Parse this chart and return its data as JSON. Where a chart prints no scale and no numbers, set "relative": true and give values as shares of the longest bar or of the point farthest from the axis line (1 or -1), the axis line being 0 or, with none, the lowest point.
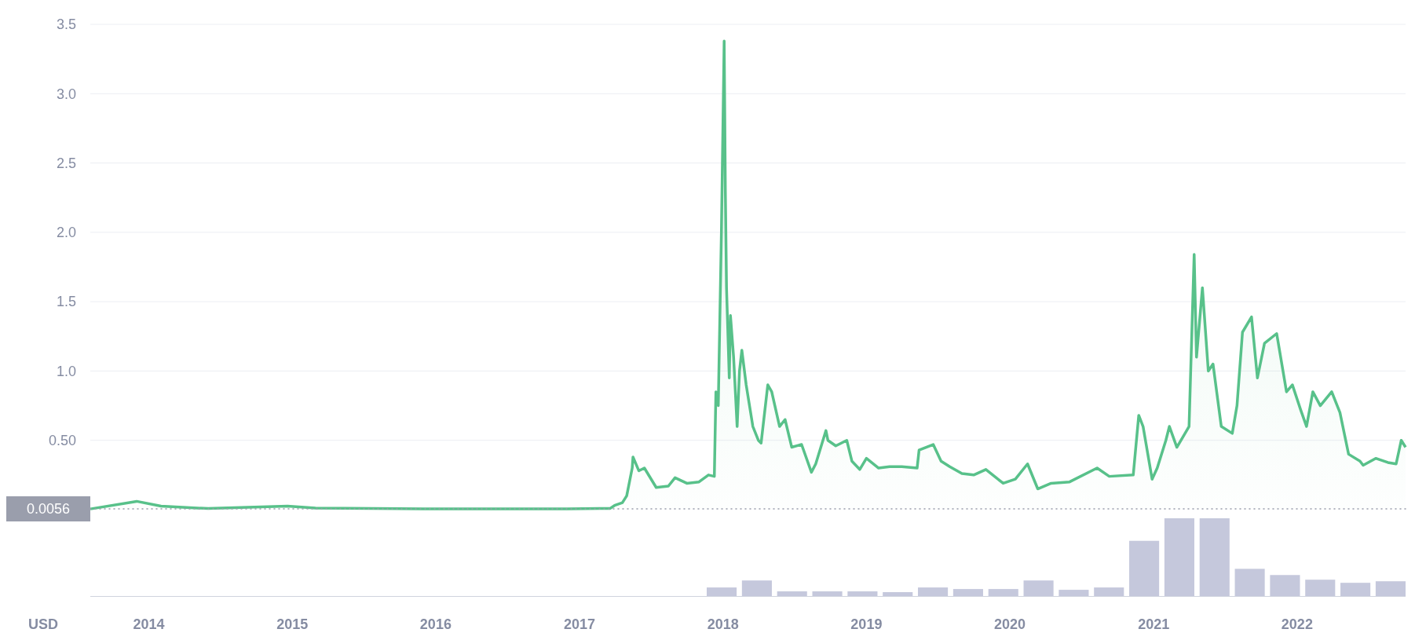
{
  "chart_data": [
    {
      "type": "area",
      "annotations": [
        "USD"
      ],
      "x": [
        "2013-08-05",
        "2013-12-01",
        "2014-02-01",
        "2014-06-01",
        "2014-12-20",
        "2015-03-01",
        "2015-12-01",
        "2016-12-01",
        "2017-03-20",
        "2017-03-31",
        "2017-04-20",
        "2017-05-01",
        "2017-05-15",
        "2017-05-17",
        "2017-06-01",
        "2017-06-15",
        "2017-07-15",
        "2017-08-15",
        "2017-09-01",
        "2017-10-01",
        "2017-11-01",
        "2017-11-25",
        "2017-12-10",
        "2017-12-14",
        "2017-12-20",
        "2017-12-28",
        "2018-01-04",
        "2018-01-07",
        "2018-01-10",
        "2018-01-17",
        "2018-01-20",
        "2018-01-28",
        "2018-02-06",
        "2018-02-12",
        "2018-02-18",
        "2018-03-01",
        "2018-03-18",
        "2018-04-01",
        "2018-04-08",
        "2018-04-25",
        "2018-05-05",
        "2018-05-25",
        "2018-06-08",
        "2018-06-25",
        "2018-07-20",
        "2018-08-14",
        "2018-08-25",
        "2018-09-20",
        "2018-09-25",
        "2018-10-15",
        "2018-11-12",
        "2018-11-25",
        "2018-12-15",
        "2019-01-01",
        "2019-02-01",
        "2019-03-01",
        "2019-04-01",
        "2019-05-10",
        "2019-05-15",
        "2019-06-20",
        "2019-07-10",
        "2019-08-01",
        "2019-09-01",
        "2019-10-01",
        "2019-11-01",
        "2019-12-15",
        "2020-01-15",
        "2020-02-15",
        "2020-03-12",
        "2020-04-15",
        "2020-06-01",
        "2020-08-10",
        "2020-09-10",
        "2020-11-10",
        "2020-11-24",
        "2020-12-05",
        "2020-12-28",
        "2021-01-10",
        "2021-02-01",
        "2021-02-10",
        "2021-03-01",
        "2021-04-01",
        "2021-04-14",
        "2021-04-20",
        "2021-05-05",
        "2021-05-20",
        "2021-06-01",
        "2021-06-22",
        "2021-07-20",
        "2021-08-01",
        "2021-08-15",
        "2021-09-07",
        "2021-09-22",
        "2021-10-10",
        "2021-11-10",
        "2021-12-05",
        "2021-12-20",
        "2022-01-10",
        "2022-01-25",
        "2022-02-10",
        "2022-03-01",
        "2022-03-30",
        "2022-04-20",
        "2022-05-12",
        "2022-06-10",
        "2022-06-18",
        "2022-07-20",
        "2022-08-20",
        "2022-09-10",
        "2022-09-23",
        "2022-10-04"
      ],
      "series": [
        {
          "color": "#58c18a",
          "values": [
            0.005,
            0.06,
            0.025,
            0.008,
            0.025,
            0.012,
            0.006,
            0.006,
            0.009,
            0.03,
            0.05,
            0.1,
            0.3,
            0.38,
            0.28,
            0.3,
            0.16,
            0.17,
            0.23,
            0.19,
            0.2,
            0.25,
            0.24,
            0.85,
            0.75,
            2.0,
            3.38,
            2.3,
            1.6,
            0.95,
            1.4,
            1.1,
            0.6,
            1.0,
            1.15,
            0.9,
            0.6,
            0.5,
            0.48,
            0.9,
            0.85,
            0.6,
            0.65,
            0.45,
            0.47,
            0.27,
            0.33,
            0.57,
            0.5,
            0.46,
            0.5,
            0.35,
            0.29,
            0.37,
            0.3,
            0.31,
            0.31,
            0.3,
            0.43,
            0.47,
            0.35,
            0.31,
            0.26,
            0.25,
            0.29,
            0.19,
            0.22,
            0.33,
            0.15,
            0.19,
            0.2,
            0.3,
            0.24,
            0.25,
            0.68,
            0.6,
            0.22,
            0.3,
            0.5,
            0.6,
            0.45,
            0.6,
            1.84,
            1.1,
            1.6,
            1.0,
            1.05,
            0.6,
            0.55,
            0.75,
            1.28,
            1.39,
            0.95,
            1.2,
            1.27,
            0.85,
            0.9,
            0.72,
            0.6,
            0.85,
            0.75,
            0.85,
            0.7,
            0.4,
            0.35,
            0.32,
            0.37,
            0.34,
            0.33,
            0.5,
            0.45
          ]
        }
      ],
      "xlim": [
        "2013-08-05",
        "2022-10-04"
      ],
      "ylim": [
        0,
        3.5
      ],
      "yticks": [
        {
          "value": 0.5,
          "label": "0.50"
        },
        {
          "value": 1,
          "label": "1.0"
        },
        {
          "value": 1.5,
          "label": "1.5"
        },
        {
          "value": 2,
          "label": "2.0"
        },
        {
          "value": 2.5,
          "label": "2.5"
        },
        {
          "value": 3,
          "label": "3.0"
        },
        {
          "value": 3.5,
          "label": "3.5"
        }
      ],
      "grid": "y",
      "xticks": [
        "2014",
        "2015",
        "2016",
        "2017",
        "2018",
        "2019",
        "2020",
        "2021",
        "2022"
      ],
      "ref_lines": [
        {
          "axis": "y",
          "value": 0.0056,
          "label": "0.0056",
          "color": "#9a9eac",
          "line_style": "dotted"
        }
      ]
    },
    {
      "type": "bar",
      "relative": true,
      "color": "#c5c8dc",
      "categories": [
        null,
        null,
        null,
        null,
        null,
        null,
        null,
        null,
        null,
        null,
        null,
        null,
        null,
        null,
        null,
        null,
        null,
        null,
        null,
        null
      ],
      "values": [
        0.11,
        0.2,
        0.06,
        0.06,
        0.06,
        0.05,
        0.11,
        0.09,
        0.09,
        0.2,
        0.08,
        0.11,
        0.71,
        1,
        1,
        0.35,
        0.27,
        0.21,
        0.17,
        0.19
      ]
    }
  ]
}
